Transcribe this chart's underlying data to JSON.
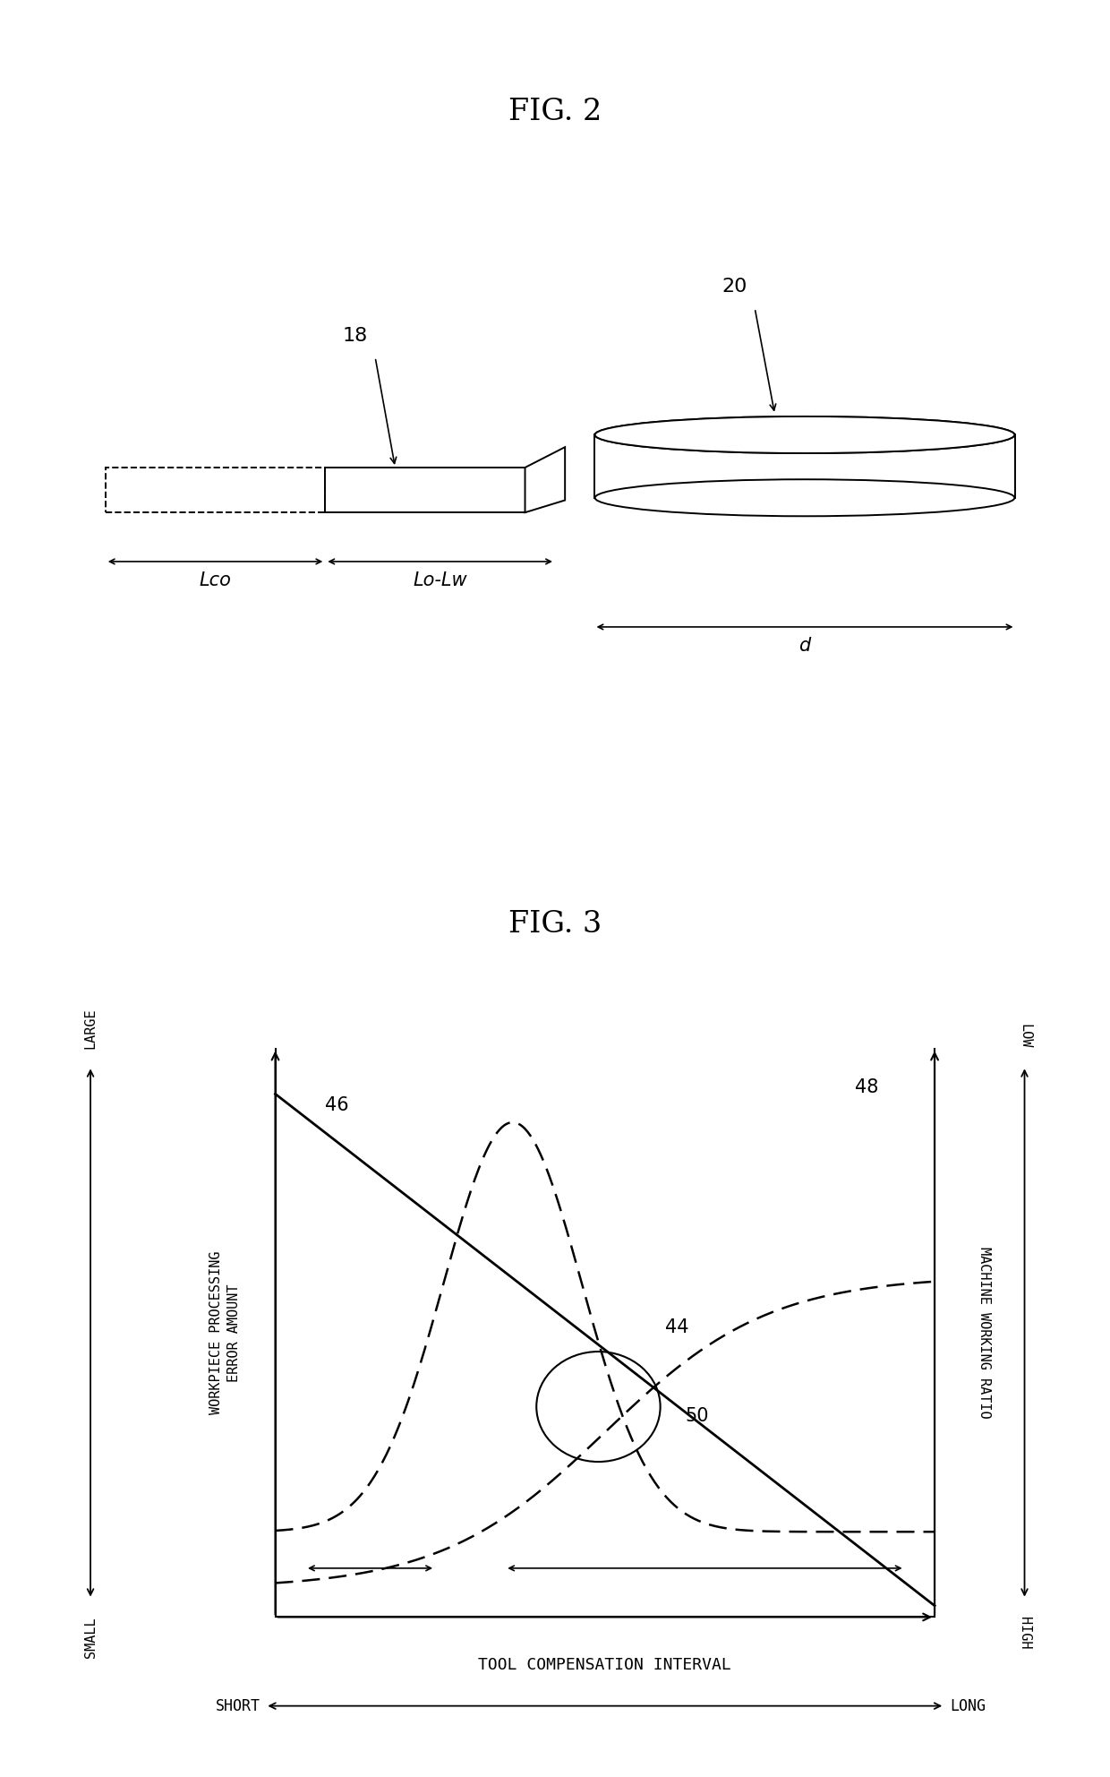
{
  "fig2_title": "FIG. 2",
  "fig3_title": "FIG. 3",
  "label_18": "18",
  "label_20": "20",
  "label_Lco": "Lco",
  "label_Lo_Lw": "Lo-Lw",
  "label_d": "d",
  "label_46": "46",
  "label_48": "48",
  "label_44": "44",
  "label_50": "50",
  "xlabel": "TOOL COMPENSATION INTERVAL",
  "ylabel_left1": "WORKPIECE PROCESSING",
  "ylabel_left2": "ERROR AMOUNT",
  "ylabel_right": "MACHINE WORKING RATIO",
  "bg_color": "#ffffff",
  "line_color": "#000000"
}
